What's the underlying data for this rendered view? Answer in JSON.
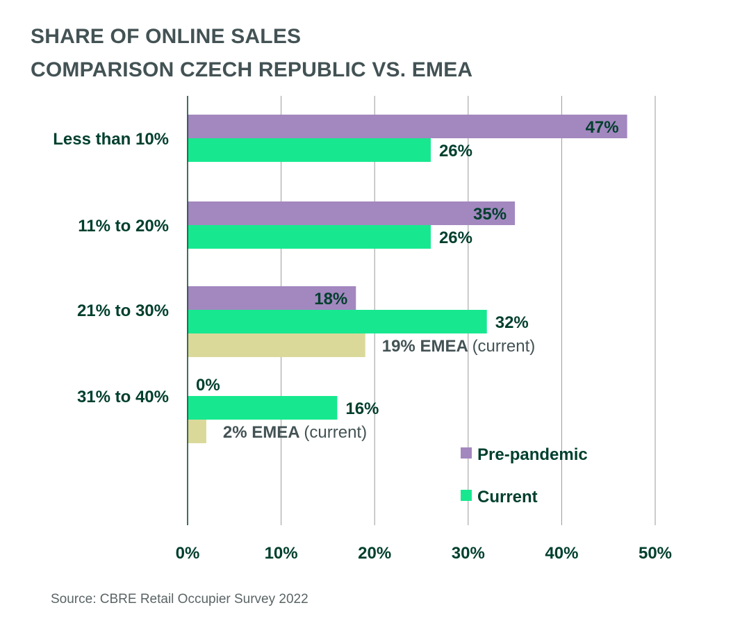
{
  "title_line1": "SHARE OF ONLINE SALES",
  "title_line2": "COMPARISON CZECH REPUBLIC VS. EMEA",
  "source": "Source: CBRE Retail Occupier Survey 2022",
  "colors": {
    "pre_pandemic": "#a387bf",
    "current": "#17e88f",
    "emea": "#dbd99a",
    "text_dark": "#003f2d",
    "emea_label": "#435254",
    "grid": "#999999",
    "axis": "#003f2d"
  },
  "chart_data": {
    "type": "bar",
    "orientation": "horizontal",
    "title": "SHARE OF ONLINE SALES COMPARISON CZECH REPUBLIC VS. EMEA",
    "categories": [
      "Less than 10%",
      "11% to 20%",
      "21% to 30%",
      "31% to 40%"
    ],
    "series": [
      {
        "name": "Pre-pandemic",
        "values": [
          47,
          35,
          18,
          0
        ],
        "labels": [
          "47%",
          "35%",
          "18%",
          "0%"
        ]
      },
      {
        "name": "Current",
        "values": [
          26,
          26,
          32,
          16
        ],
        "labels": [
          "26%",
          "26%",
          "32%",
          "16%"
        ]
      },
      {
        "values": [
          null,
          null,
          19,
          2
        ],
        "labels": [
          null,
          null,
          "19% EMEA",
          "2% EMEA"
        ],
        "label_suffix": "(current)"
      }
    ],
    "x_ticks": [
      "0%",
      "10%",
      "20%",
      "30%",
      "40%",
      "50%"
    ],
    "xlim": [
      0,
      50
    ],
    "grid": true,
    "legend": [
      {
        "name": "Pre-pandemic",
        "color_key": "pre_pandemic"
      },
      {
        "name": "Current",
        "color_key": "current"
      }
    ],
    "legend_position": "bottom-right"
  }
}
